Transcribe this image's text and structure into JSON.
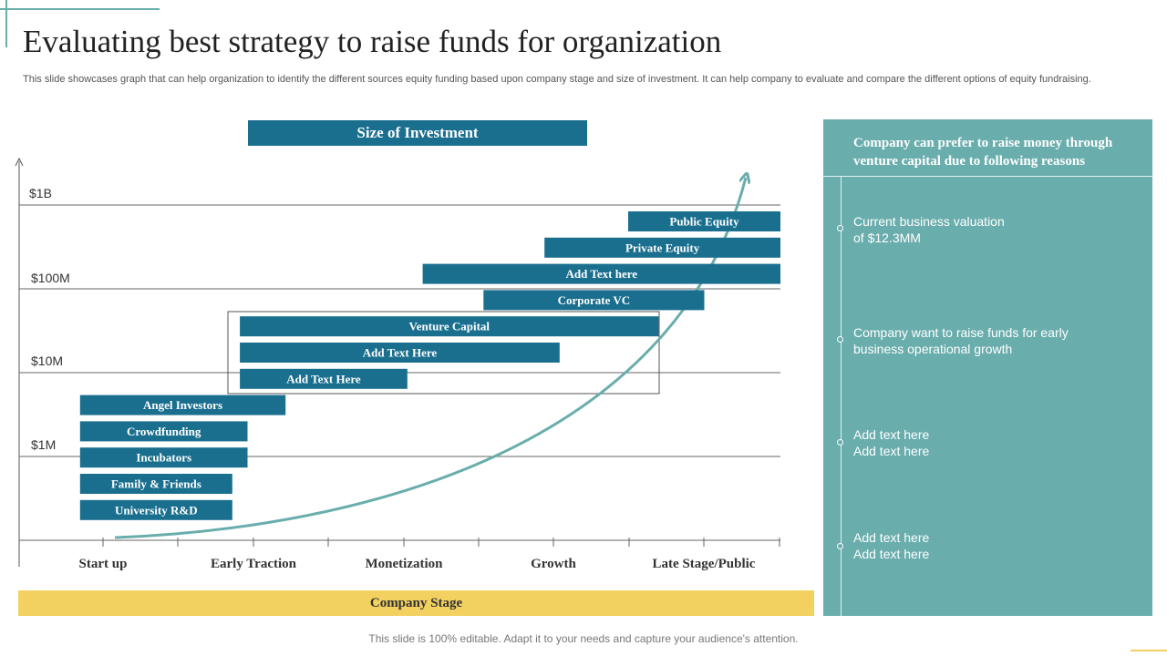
{
  "title": "Evaluating best strategy to raise funds for organization",
  "subtitle": "This slide showcases graph that can help organization to identify the different sources equity funding based upon company stage and size of investment. It can help company to evaluate and compare the different options of equity fundraising.",
  "chart_data": {
    "type": "range-bar",
    "title": "Size of Investment",
    "xlabel": "Company Stage",
    "ylabel": "Size of Investment",
    "stages": [
      "Start up",
      "Early Traction",
      "Monetization",
      "Growth",
      "Late Stage/Public"
    ],
    "levels": [
      "$1M",
      "$10M",
      "$100M",
      "$1B"
    ],
    "bars": [
      {
        "label": "Public Equity",
        "start": 4.0,
        "end": 5.0
      },
      {
        "label": "Private Equity",
        "start": 3.45,
        "end": 5.0
      },
      {
        "label": "Add  Text here",
        "start": 2.65,
        "end": 5.0
      },
      {
        "label": "Corporate  VC",
        "start": 3.05,
        "end": 4.5
      },
      {
        "label": "Venture Capital",
        "start": 1.45,
        "end": 4.2
      },
      {
        "label": "Add  Text Here",
        "start": 1.45,
        "end": 3.55
      },
      {
        "label": "Add  Text Here",
        "start": 1.45,
        "end": 2.55
      },
      {
        "label": "Angel Investors",
        "start": 0.4,
        "end": 1.75
      },
      {
        "label": "Crowdfunding",
        "start": 0.4,
        "end": 1.5
      },
      {
        "label": "Incubators",
        "start": 0.4,
        "end": 1.5
      },
      {
        "label": "Family  & Friends",
        "start": 0.4,
        "end": 1.4
      },
      {
        "label": "University  R&D",
        "start": 0.4,
        "end": 1.4
      }
    ]
  },
  "side_panel": {
    "heading": "Company  can prefer to raise money through venture capital  due to following  reasons",
    "items": [
      "Current business valuation\nof $12.3MM",
      "Company want to raise funds for early\nbusiness operational growth",
      "Add text here\nAdd text here",
      "Add text here\nAdd text here"
    ]
  },
  "footer": "This slide is 100% editable. Adapt it to your needs and capture your audience's attention.",
  "colors": {
    "bar": "#1a6f8f",
    "curve": "#6aadad",
    "panel": "#6aadad",
    "stage_bar": "#f2d160"
  }
}
